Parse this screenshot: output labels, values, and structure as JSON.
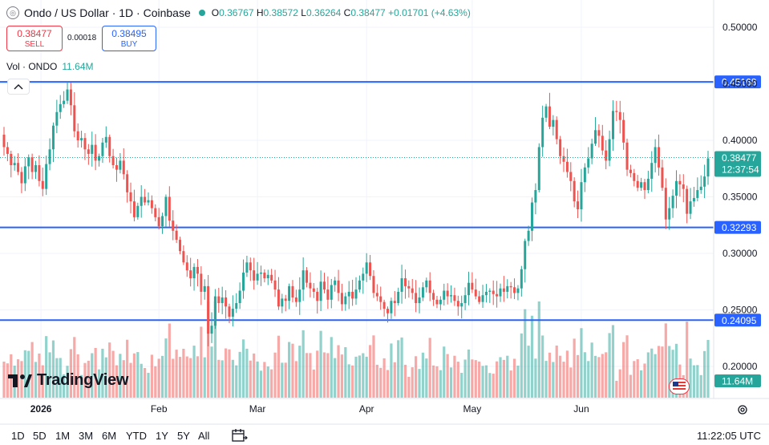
{
  "header": {
    "symbol_icon": "coin-icon",
    "title": "Ondo / US Dollar · 1D · Coinbase",
    "o_label": "O",
    "open": "0.36767",
    "h_label": "H",
    "high": "0.38572",
    "l_label": "L",
    "low": "0.36264",
    "c_label": "C",
    "close": "0.38477",
    "change": "+0.01701 (+4.63%)"
  },
  "trade": {
    "sell_price": "0.38477",
    "sell_label": "SELL",
    "spread": "0.00018",
    "buy_price": "0.38495",
    "buy_label": "BUY"
  },
  "volume_legend": {
    "label": "Vol · ONDO",
    "value": "11.64M"
  },
  "brand": {
    "name": "TradingView"
  },
  "bottom_bar": {
    "timeframes": [
      "1D",
      "5D",
      "1M",
      "3M",
      "6M",
      "YTD",
      "1Y",
      "5Y",
      "All"
    ],
    "clock": "11:22:05 UTC"
  },
  "colors": {
    "up": "#26a69a",
    "down": "#ef5350",
    "level_line": "#2962ff",
    "accent": "#2962ff"
  },
  "chart_data": {
    "type": "candlestick",
    "y_ticks": [
      "0.50000",
      "0.45000",
      "0.40000",
      "0.35000",
      "0.30000",
      "0.25000",
      "0.20000"
    ],
    "x_ticks": [
      "2026",
      "Feb",
      "Mar",
      "Apr",
      "May",
      "Jun"
    ],
    "ylim": [
      0.17,
      0.52
    ],
    "horizontal_levels": [
      {
        "value": 0.45168,
        "label": "0.45168"
      },
      {
        "value": 0.32293,
        "label": "0.32293"
      },
      {
        "value": 0.24095,
        "label": "0.24095"
      }
    ],
    "last_price": {
      "value": 0.38477,
      "label": "0.38477",
      "countdown": "12:37:54"
    },
    "volume_label": "11.64M",
    "closes": [
      0.394,
      0.388,
      0.378,
      0.38,
      0.372,
      0.362,
      0.377,
      0.385,
      0.372,
      0.378,
      0.364,
      0.357,
      0.379,
      0.392,
      0.413,
      0.425,
      0.432,
      0.435,
      0.445,
      0.431,
      0.408,
      0.4,
      0.402,
      0.392,
      0.388,
      0.396,
      0.382,
      0.386,
      0.398,
      0.403,
      0.386,
      0.378,
      0.374,
      0.382,
      0.37,
      0.354,
      0.346,
      0.332,
      0.342,
      0.35,
      0.345,
      0.347,
      0.34,
      0.332,
      0.324,
      0.333,
      0.35,
      0.329,
      0.32,
      0.312,
      0.302,
      0.292,
      0.285,
      0.278,
      0.288,
      0.282,
      0.266,
      0.271,
      0.229,
      0.236,
      0.262,
      0.256,
      0.261,
      0.253,
      0.244,
      0.251,
      0.256,
      0.267,
      0.283,
      0.292,
      0.285,
      0.276,
      0.282,
      0.283,
      0.278,
      0.281,
      0.276,
      0.268,
      0.253,
      0.26,
      0.258,
      0.271,
      0.261,
      0.257,
      0.268,
      0.285,
      0.274,
      0.269,
      0.266,
      0.258,
      0.275,
      0.268,
      0.259,
      0.272,
      0.276,
      0.265,
      0.255,
      0.262,
      0.266,
      0.26,
      0.268,
      0.276,
      0.282,
      0.292,
      0.28,
      0.265,
      0.262,
      0.257,
      0.251,
      0.247,
      0.258,
      0.256,
      0.266,
      0.278,
      0.271,
      0.269,
      0.265,
      0.256,
      0.261,
      0.27,
      0.276,
      0.265,
      0.259,
      0.255,
      0.259,
      0.267,
      0.262,
      0.263,
      0.258,
      0.253,
      0.256,
      0.263,
      0.274,
      0.268,
      0.262,
      0.257,
      0.263,
      0.266,
      0.267,
      0.264,
      0.262,
      0.269,
      0.266,
      0.271,
      0.27,
      0.265,
      0.269,
      0.286,
      0.311,
      0.32,
      0.345,
      0.356,
      0.394,
      0.42,
      0.43,
      0.412,
      0.418,
      0.401,
      0.386,
      0.381,
      0.372,
      0.364,
      0.346,
      0.339,
      0.363,
      0.376,
      0.384,
      0.397,
      0.409,
      0.404,
      0.391,
      0.382,
      0.401,
      0.426,
      0.425,
      0.418,
      0.398,
      0.374,
      0.371,
      0.364,
      0.358,
      0.363,
      0.356,
      0.366,
      0.38,
      0.394,
      0.376,
      0.358,
      0.33,
      0.34,
      0.351,
      0.364,
      0.361,
      0.357,
      0.335,
      0.346,
      0.349,
      0.356,
      0.359,
      0.368,
      0.384
    ]
  }
}
